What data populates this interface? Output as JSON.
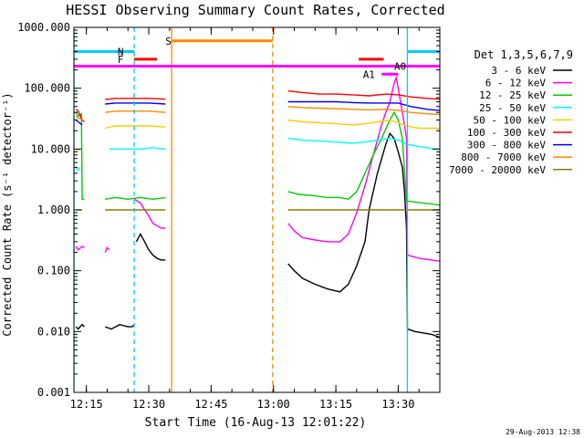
{
  "chart_data": {
    "type": "line",
    "title": "HESSI Observing Summary Count Rates, Corrected",
    "xlabel": "Start Time (16-Aug-13 12:01:22)",
    "ylabel": "Corrected Count Rate (s⁻¹ detector⁻¹)",
    "timestamp": "29-Aug-2013 12:38",
    "x_unit": "minutes",
    "xlim": [
      12.0,
      100.0
    ],
    "ylim": [
      0.001,
      1000.0
    ],
    "y_scale": "log",
    "x_ticks": [
      {
        "v": 15,
        "label": "12:15"
      },
      {
        "v": 30,
        "label": "12:30"
      },
      {
        "v": 45,
        "label": "12:45"
      },
      {
        "v": 60,
        "label": "13:00"
      },
      {
        "v": 75,
        "label": "13:15"
      },
      {
        "v": 90,
        "label": "13:30"
      }
    ],
    "y_ticks": [
      {
        "v": 0.001,
        "label": "0.001"
      },
      {
        "v": 0.01,
        "label": "0.010"
      },
      {
        "v": 0.1,
        "label": "0.100"
      },
      {
        "v": 1,
        "label": "1.000"
      },
      {
        "v": 10,
        "label": "10.000"
      },
      {
        "v": 100,
        "label": "100.000"
      },
      {
        "v": 1000,
        "label": "1000.000"
      }
    ],
    "legend_title": "Det 1,3,5,6,7,9",
    "legend_position": "right",
    "series": [
      {
        "name": "3 - 6 keV",
        "color": "#000000",
        "segments": [
          [
            [
              12.5,
              0.012
            ],
            [
              13,
              0.011
            ],
            [
              14,
              0.013
            ],
            [
              14.5,
              0.012
            ]
          ],
          [
            [
              19.5,
              0.012
            ],
            [
              21,
              0.011
            ],
            [
              23,
              0.013
            ],
            [
              25,
              0.012
            ],
            [
              26,
              0.012
            ],
            [
              26.5,
              0.013
            ]
          ],
          [
            [
              27,
              0.3
            ],
            [
              28,
              0.4
            ],
            [
              29,
              0.3
            ],
            [
              30,
              0.22
            ],
            [
              31,
              0.18
            ],
            [
              32,
              0.16
            ],
            [
              33,
              0.15
            ],
            [
              34,
              0.15
            ]
          ],
          [
            [
              63.5,
              0.13
            ],
            [
              65,
              0.1
            ],
            [
              67,
              0.075
            ],
            [
              70,
              0.06
            ],
            [
              73,
              0.05
            ],
            [
              76,
              0.045
            ],
            [
              78,
              0.06
            ],
            [
              80,
              0.12
            ],
            [
              82,
              0.3
            ],
            [
              83,
              1.0
            ],
            [
              85,
              4.0
            ],
            [
              87,
              12
            ],
            [
              88,
              18
            ],
            [
              89,
              15
            ],
            [
              90,
              9
            ],
            [
              91,
              5
            ],
            [
              91.5,
              2.0
            ],
            [
              92,
              0.5
            ],
            [
              92.2,
              0.011
            ],
            [
              94,
              0.01
            ],
            [
              98,
              0.009
            ],
            [
              100,
              0.008
            ],
            [
              102,
              0.009
            ],
            [
              103,
              0.009
            ]
          ]
        ]
      },
      {
        "name": "6 - 12 keV",
        "color": "#ff00ff",
        "segments": [
          [
            [
              12.5,
              0.25
            ],
            [
              13,
              0.22
            ],
            [
              14,
              0.25
            ],
            [
              14.5,
              0.24
            ]
          ],
          [
            [
              19.5,
              0.2
            ],
            [
              20,
              0.24
            ],
            [
              20.5,
              0.22
            ]
          ],
          [
            [
              26.5,
              1.5
            ],
            [
              28,
              1.3
            ],
            [
              29,
              1.0
            ],
            [
              30,
              0.8
            ],
            [
              31,
              0.6
            ],
            [
              32,
              0.55
            ],
            [
              33,
              0.5
            ],
            [
              34,
              0.5
            ]
          ],
          [
            [
              63.5,
              0.6
            ],
            [
              65,
              0.45
            ],
            [
              67,
              0.35
            ],
            [
              70,
              0.32
            ],
            [
              73,
              0.3
            ],
            [
              76,
              0.3
            ],
            [
              78,
              0.4
            ],
            [
              80,
              0.9
            ],
            [
              82,
              2.5
            ],
            [
              84,
              8
            ],
            [
              86,
              25
            ],
            [
              87,
              40
            ],
            [
              88,
              60
            ],
            [
              89,
              120
            ],
            [
              89.5,
              150
            ],
            [
              90,
              100
            ],
            [
              91,
              40
            ],
            [
              92,
              15
            ],
            [
              92.2,
              0.18
            ],
            [
              95,
              0.16
            ],
            [
              98,
              0.15
            ],
            [
              101,
              0.14
            ],
            [
              103,
              0.14
            ]
          ]
        ]
      },
      {
        "name": "12 - 25 keV",
        "color": "#00cc00",
        "segments": [
          [
            [
              12.5,
              40
            ],
            [
              13,
              35
            ],
            [
              13.8,
              38
            ],
            [
              14,
              1.5
            ],
            [
              14.5,
              1.5
            ]
          ],
          [
            [
              19.5,
              1.5
            ],
            [
              22,
              1.6
            ],
            [
              25,
              1.5
            ],
            [
              28,
              1.6
            ],
            [
              31,
              1.5
            ],
            [
              34,
              1.6
            ]
          ],
          [
            [
              63.5,
              2.0
            ],
            [
              66,
              1.8
            ],
            [
              70,
              1.7
            ],
            [
              73,
              1.6
            ],
            [
              76,
              1.6
            ],
            [
              78,
              1.5
            ],
            [
              80,
              2.0
            ],
            [
              82,
              4
            ],
            [
              84,
              8
            ],
            [
              86,
              15
            ],
            [
              88,
              30
            ],
            [
              89,
              40
            ],
            [
              90,
              30
            ],
            [
              91,
              15
            ],
            [
              92,
              1.4
            ],
            [
              96,
              1.3
            ],
            [
              100,
              1.2
            ],
            [
              103,
              1.2
            ]
          ]
        ]
      },
      {
        "name": "25 - 50 keV",
        "color": "#00ffff",
        "segments": [
          [
            [
              12.5,
              5
            ],
            [
              13,
              4.5
            ],
            [
              13.5,
              5
            ]
          ],
          [
            [
              20.5,
              10
            ],
            [
              24,
              10
            ],
            [
              28,
              10
            ],
            [
              31,
              10.5
            ],
            [
              34,
              10
            ]
          ],
          [
            [
              63.5,
              15
            ],
            [
              67,
              14
            ],
            [
              71,
              13.5
            ],
            [
              75,
              13
            ],
            [
              79,
              12.5
            ],
            [
              82,
              13
            ],
            [
              85,
              14
            ],
            [
              88,
              15
            ],
            [
              90,
              14
            ],
            [
              92,
              12
            ],
            [
              95,
              11
            ],
            [
              99,
              10
            ],
            [
              103,
              10
            ]
          ]
        ]
      },
      {
        "name": "50 - 100 keV",
        "color": "#ffcc00",
        "segments": [
          [
            [
              12.5,
              9
            ],
            [
              13,
              10
            ],
            [
              13.5,
              9.5
            ]
          ],
          [
            [
              19.5,
              22
            ],
            [
              22,
              24
            ],
            [
              26,
              24
            ],
            [
              30,
              24
            ],
            [
              34,
              23
            ]
          ],
          [
            [
              63.5,
              30
            ],
            [
              67,
              28
            ],
            [
              71,
              27
            ],
            [
              75,
              26
            ],
            [
              79,
              25
            ],
            [
              82,
              26
            ],
            [
              85,
              28
            ],
            [
              88,
              30
            ],
            [
              90,
              27
            ],
            [
              92,
              24
            ],
            [
              95,
              22
            ],
            [
              99,
              22
            ],
            [
              103,
              21
            ]
          ]
        ]
      },
      {
        "name": "100 - 300 keV",
        "color": "#ff0000",
        "segments": [
          [
            [
              12.5,
              45
            ],
            [
              13,
              42
            ],
            [
              14,
              30
            ],
            [
              14.5,
              28
            ]
          ],
          [
            [
              19.5,
              65
            ],
            [
              22,
              68
            ],
            [
              26,
              68
            ],
            [
              30,
              68
            ],
            [
              34,
              66
            ]
          ],
          [
            [
              63.5,
              90
            ],
            [
              67,
              85
            ],
            [
              71,
              80
            ],
            [
              75,
              80
            ],
            [
              79,
              78
            ],
            [
              83,
              75
            ],
            [
              87,
              80
            ],
            [
              90,
              78
            ],
            [
              93,
              72
            ],
            [
              97,
              68
            ],
            [
              100,
              66
            ],
            [
              103,
              64
            ]
          ]
        ]
      },
      {
        "name": "300 - 800 keV",
        "color": "#0000ff",
        "segments": [
          [
            [
              12.5,
              30
            ],
            [
              13,
              28
            ],
            [
              14,
              25
            ]
          ],
          [
            [
              19.5,
              55
            ],
            [
              22,
              57
            ],
            [
              26,
              57
            ],
            [
              30,
              57
            ],
            [
              34,
              55
            ]
          ],
          [
            [
              63.5,
              60
            ],
            [
              67,
              60
            ],
            [
              71,
              60
            ],
            [
              75,
              60
            ],
            [
              79,
              58
            ],
            [
              83,
              57
            ],
            [
              87,
              57
            ],
            [
              90,
              57
            ],
            [
              93,
              50
            ],
            [
              97,
              45
            ],
            [
              100,
              43
            ],
            [
              103,
              42
            ]
          ]
        ]
      },
      {
        "name": "800 - 7000 keV",
        "color": "#ff8800",
        "segments": [
          [
            [
              12.5,
              35
            ],
            [
              13,
              33
            ],
            [
              14,
              30
            ]
          ],
          [
            [
              19.5,
              40
            ],
            [
              22,
              42
            ],
            [
              26,
              42
            ],
            [
              30,
              42
            ],
            [
              34,
              40
            ]
          ],
          [
            [
              63.5,
              50
            ],
            [
              67,
              48
            ],
            [
              71,
              47
            ],
            [
              75,
              46
            ],
            [
              79,
              45
            ],
            [
              83,
              44
            ],
            [
              87,
              45
            ],
            [
              90,
              43
            ],
            [
              93,
              40
            ],
            [
              97,
              38
            ],
            [
              100,
              37
            ],
            [
              103,
              36
            ]
          ]
        ]
      },
      {
        "name": "7000 - 20000 keV",
        "color": "#808000",
        "segments": [
          [
            [
              12.5,
              1.0
            ],
            [
              13.5,
              1.0
            ],
            [
              14,
              1.0
            ]
          ],
          [
            [
              19.5,
              1.0
            ],
            [
              25,
              1.0
            ],
            [
              30,
              1.0
            ],
            [
              34,
              1.0
            ]
          ],
          [
            [
              63.5,
              1.0
            ],
            [
              67,
              1.0
            ],
            [
              72,
              1.0
            ],
            [
              77,
              1.0
            ],
            [
              82,
              1.0
            ],
            [
              87,
              1.0
            ],
            [
              92,
              1.0
            ],
            [
              97,
              1.0
            ],
            [
              103,
              1.0
            ]
          ]
        ]
      }
    ],
    "bars": [
      {
        "label": "N",
        "color": "#00ccff",
        "y": 400,
        "x0": 12.0,
        "x1": 26.5,
        "label_x": 22.5
      },
      {
        "label": "N",
        "color": "#00ccff",
        "y": 400,
        "x0": 92.2,
        "x1": 103.5,
        "label_x": null
      },
      {
        "label": "S",
        "color": "#ff8800",
        "y": 600,
        "x0": 35.5,
        "x1": 59.8,
        "label_x": 34.0
      },
      {
        "label": "F",
        "color": "#ff0000",
        "y": 300,
        "x0": 26.5,
        "x1": 32.0,
        "label_x": 22.5
      },
      {
        "label": "F",
        "color": "#ff0000",
        "y": 300,
        "x0": 80.5,
        "x1": 86.5,
        "label_x": null
      },
      {
        "label": "",
        "color": "#ff00ff",
        "y": 230,
        "x0": 12.0,
        "x1": 103.5,
        "label_x": null
      },
      {
        "label": "A1",
        "color": "#ff00ff",
        "y": 170,
        "x0": 86.0,
        "x1": 90.0,
        "label_x": 81.5
      },
      {
        "label": "A0",
        "color": "#ff00ff",
        "y": 230,
        "x0": 86.5,
        "x1": 90.5,
        "label_x": 89.0
      }
    ],
    "vlines": [
      {
        "x": 12.0,
        "color": "#00ccff",
        "style": "solid"
      },
      {
        "x": 26.5,
        "color": "#00ccff",
        "style": "dashed"
      },
      {
        "x": 35.5,
        "color": "#ff8800",
        "style": "solid"
      },
      {
        "x": 59.8,
        "color": "#ff8800",
        "style": "dashed"
      },
      {
        "x": 92.2,
        "color": "#00ccff",
        "style": "solid"
      },
      {
        "x": 103.3,
        "color": "#00ccff",
        "style": "dashed"
      }
    ]
  }
}
